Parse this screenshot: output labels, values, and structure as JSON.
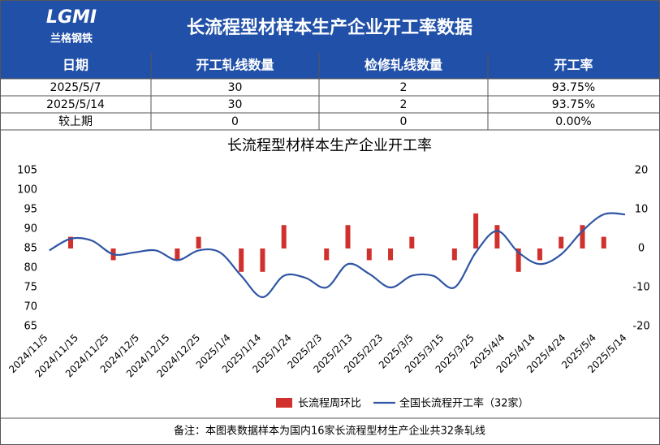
{
  "header": {
    "logo": "LGMI",
    "logo_sub": "兰格钢铁",
    "title": "长流程型材样本生产企业开工率数据"
  },
  "table": {
    "columns": [
      "日期",
      "开工轧线数量",
      "检修轧线数量",
      "开工率"
    ],
    "rows": [
      [
        "2025/5/7",
        "30",
        "2",
        "93.75%"
      ],
      [
        "2025/5/14",
        "30",
        "2",
        "93.75%"
      ],
      [
        "较上期",
        "0",
        "0",
        "0.00%"
      ]
    ]
  },
  "chart_data": {
    "type": "combo",
    "title": "长流程型材样本生产企业开工率",
    "x": [
      "2024/11/6",
      "2024/11/13",
      "2024/11/20",
      "2024/11/27",
      "2024/12/4",
      "2024/12/11",
      "2024/12/18",
      "2024/12/25",
      "2025/1/1",
      "2025/1/8",
      "2025/1/15",
      "2025/1/22",
      "2025/1/29",
      "2025/2/5",
      "2025/2/12",
      "2025/2/19",
      "2025/2/26",
      "2025/3/5",
      "2025/3/12",
      "2025/3/19",
      "2025/3/26",
      "2025/4/2",
      "2025/4/9",
      "2025/4/16",
      "2025/4/23",
      "2025/4/30",
      "2025/5/7",
      "2025/5/14"
    ],
    "series": [
      {
        "name": "长流程周环比",
        "type": "bar",
        "axis": "y2",
        "color": "#d0312d",
        "values": [
          0,
          3,
          0,
          -3,
          0,
          0,
          -3,
          3,
          0,
          -6,
          -6,
          6,
          0,
          -3,
          6,
          -3,
          -3,
          3,
          0,
          -3,
          9,
          6,
          -6,
          -3,
          3,
          6,
          3,
          0
        ]
      },
      {
        "name": "全国长流程开工率（32家）",
        "type": "line",
        "color": "#2f55a4",
        "values": [
          84.5,
          87.5,
          87,
          83.5,
          84,
          84.5,
          82,
          84.5,
          84,
          78,
          72.5,
          78,
          77.5,
          75,
          81,
          78.5,
          75,
          78,
          78,
          75,
          84,
          89.5,
          84,
          81,
          83.5,
          89.5,
          93.75,
          93.75
        ]
      }
    ],
    "xlim": [
      "2024/11/5",
      "2025/5/14"
    ],
    "xticks": [
      "2024/11/5",
      "2024/11/15",
      "2024/11/25",
      "2024/12/5",
      "2024/12/15",
      "2024/12/25",
      "2025/1/4",
      "2025/1/14",
      "2025/1/24",
      "2025/2/3",
      "2025/2/13",
      "2025/2/23",
      "2025/3/5",
      "2025/3/15",
      "2025/3/25",
      "2025/4/4",
      "2025/4/14",
      "2025/4/24",
      "2025/5/4",
      "2025/5/14"
    ],
    "ylim": [
      65,
      105
    ],
    "yticks": [
      65,
      70,
      75,
      80,
      85,
      90,
      95,
      100,
      105
    ],
    "y2lim": [
      -20,
      20
    ],
    "y2ticks": [
      -20,
      -10,
      0,
      10,
      20
    ],
    "legend": "bottom"
  },
  "footer": {
    "note": "备注：本图表数据样本为国内16家长流程型材生产企业共32条轧线"
  }
}
